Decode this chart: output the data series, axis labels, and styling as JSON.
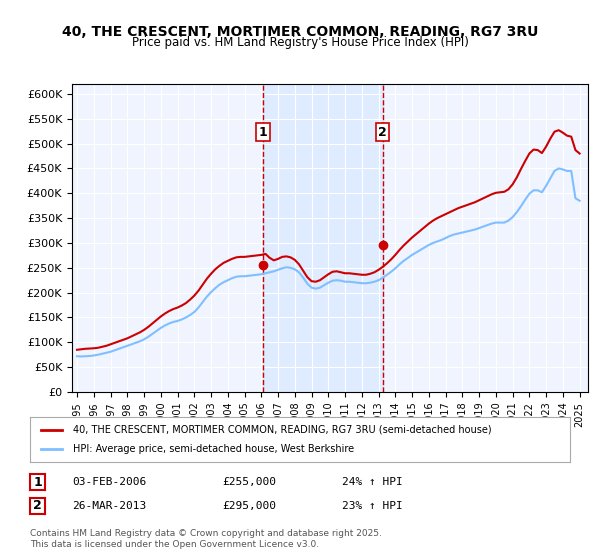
{
  "title": "40, THE CRESCENT, MORTIMER COMMON, READING, RG7 3RU",
  "subtitle": "Price paid vs. HM Land Registry's House Price Index (HPI)",
  "ylabel_ticks": [
    "£0",
    "£50K",
    "£100K",
    "£150K",
    "£200K",
    "£250K",
    "£300K",
    "£350K",
    "£400K",
    "£450K",
    "£500K",
    "£550K",
    "£600K"
  ],
  "ylim": [
    0,
    600000
  ],
  "xlim_start": 1995.0,
  "xlim_end": 2025.5,
  "background_color": "#ffffff",
  "plot_bg_color": "#f0f4ff",
  "grid_color": "#ffffff",
  "hpi_line_color": "#7fbfff",
  "price_line_color": "#cc0000",
  "sale1_date": "03-FEB-2006",
  "sale1_price": 255000,
  "sale1_pct": "24% ↑ HPI",
  "sale2_date": "26-MAR-2013",
  "sale2_price": 295000,
  "sale2_pct": "23% ↑ HPI",
  "legend_label1": "40, THE CRESCENT, MORTIMER COMMON, READING, RG7 3RU (semi-detached house)",
  "legend_label2": "HPI: Average price, semi-detached house, West Berkshire",
  "footer": "Contains HM Land Registry data © Crown copyright and database right 2025.\nThis data is licensed under the Open Government Licence v3.0.",
  "marker1_x": 2006.09,
  "marker1_y": 255000,
  "marker2_x": 2013.24,
  "marker2_y": 295000,
  "vline1_x": 2006.09,
  "vline2_x": 2013.24,
  "hpi_data_x": [
    1995.0,
    1995.25,
    1995.5,
    1995.75,
    1996.0,
    1996.25,
    1996.5,
    1996.75,
    1997.0,
    1997.25,
    1997.5,
    1997.75,
    1998.0,
    1998.25,
    1998.5,
    1998.75,
    1999.0,
    1999.25,
    1999.5,
    1999.75,
    2000.0,
    2000.25,
    2000.5,
    2000.75,
    2001.0,
    2001.25,
    2001.5,
    2001.75,
    2002.0,
    2002.25,
    2002.5,
    2002.75,
    2003.0,
    2003.25,
    2003.5,
    2003.75,
    2004.0,
    2004.25,
    2004.5,
    2004.75,
    2005.0,
    2005.25,
    2005.5,
    2005.75,
    2006.0,
    2006.25,
    2006.5,
    2006.75,
    2007.0,
    2007.25,
    2007.5,
    2007.75,
    2008.0,
    2008.25,
    2008.5,
    2008.75,
    2009.0,
    2009.25,
    2009.5,
    2009.75,
    2010.0,
    2010.25,
    2010.5,
    2010.75,
    2011.0,
    2011.25,
    2011.5,
    2011.75,
    2012.0,
    2012.25,
    2012.5,
    2012.75,
    2013.0,
    2013.25,
    2013.5,
    2013.75,
    2014.0,
    2014.25,
    2014.5,
    2014.75,
    2015.0,
    2015.25,
    2015.5,
    2015.75,
    2016.0,
    2016.25,
    2016.5,
    2016.75,
    2017.0,
    2017.25,
    2017.5,
    2017.75,
    2018.0,
    2018.25,
    2018.5,
    2018.75,
    2019.0,
    2019.25,
    2019.5,
    2019.75,
    2020.0,
    2020.25,
    2020.5,
    2020.75,
    2021.0,
    2021.25,
    2021.5,
    2021.75,
    2022.0,
    2022.25,
    2022.5,
    2022.75,
    2023.0,
    2023.25,
    2023.5,
    2023.75,
    2024.0,
    2024.25,
    2024.5,
    2024.75,
    2025.0
  ],
  "hpi_data_y": [
    72000,
    71500,
    72000,
    72500,
    73500,
    75000,
    77000,
    79000,
    81000,
    84000,
    87000,
    90000,
    93000,
    96000,
    99000,
    102000,
    106000,
    111000,
    117000,
    123000,
    129000,
    134000,
    138000,
    141000,
    143000,
    146000,
    150000,
    155000,
    161000,
    170000,
    181000,
    192000,
    201000,
    209000,
    216000,
    221000,
    225000,
    229000,
    232000,
    233000,
    233000,
    234000,
    235000,
    236000,
    237000,
    239000,
    241000,
    243000,
    246000,
    249000,
    251000,
    250000,
    247000,
    241000,
    230000,
    218000,
    210000,
    208000,
    210000,
    215000,
    220000,
    224000,
    225000,
    224000,
    222000,
    222000,
    221000,
    220000,
    219000,
    219000,
    220000,
    222000,
    225000,
    230000,
    236000,
    242000,
    249000,
    257000,
    264000,
    270000,
    276000,
    281000,
    286000,
    291000,
    296000,
    300000,
    303000,
    306000,
    310000,
    314000,
    317000,
    319000,
    321000,
    323000,
    325000,
    327000,
    330000,
    333000,
    336000,
    339000,
    341000,
    341000,
    341000,
    345000,
    352000,
    362000,
    374000,
    387000,
    399000,
    406000,
    406000,
    402000,
    415000,
    430000,
    445000,
    450000,
    448000,
    445000,
    445000,
    390000,
    385000
  ],
  "price_data_x": [
    1995.0,
    1995.25,
    1995.5,
    1995.75,
    1996.0,
    1996.25,
    1996.5,
    1996.75,
    1997.0,
    1997.25,
    1997.5,
    1997.75,
    1998.0,
    1998.25,
    1998.5,
    1998.75,
    1999.0,
    1999.25,
    1999.5,
    1999.75,
    2000.0,
    2000.25,
    2000.5,
    2000.75,
    2001.0,
    2001.25,
    2001.5,
    2001.75,
    2002.0,
    2002.25,
    2002.5,
    2002.75,
    2003.0,
    2003.25,
    2003.5,
    2003.75,
    2004.0,
    2004.25,
    2004.5,
    2004.75,
    2005.0,
    2005.25,
    2005.5,
    2005.75,
    2006.0,
    2006.25,
    2006.5,
    2006.75,
    2007.0,
    2007.25,
    2007.5,
    2007.75,
    2008.0,
    2008.25,
    2008.5,
    2008.75,
    2009.0,
    2009.25,
    2009.5,
    2009.75,
    2010.0,
    2010.25,
    2010.5,
    2010.75,
    2011.0,
    2011.25,
    2011.5,
    2011.75,
    2012.0,
    2012.25,
    2012.5,
    2012.75,
    2013.0,
    2013.25,
    2013.5,
    2013.75,
    2014.0,
    2014.25,
    2014.5,
    2014.75,
    2015.0,
    2015.25,
    2015.5,
    2015.75,
    2016.0,
    2016.25,
    2016.5,
    2016.75,
    2017.0,
    2017.25,
    2017.5,
    2017.75,
    2018.0,
    2018.25,
    2018.5,
    2018.75,
    2019.0,
    2019.25,
    2019.5,
    2019.75,
    2020.0,
    2020.25,
    2020.5,
    2020.75,
    2021.0,
    2021.25,
    2021.5,
    2021.75,
    2022.0,
    2022.25,
    2022.5,
    2022.75,
    2023.0,
    2023.25,
    2023.5,
    2023.75,
    2024.0,
    2024.25,
    2024.5,
    2024.75,
    2025.0
  ],
  "price_data_y": [
    85000,
    86000,
    87000,
    87500,
    88000,
    89000,
    91000,
    93000,
    96000,
    99000,
    102000,
    105000,
    108000,
    112000,
    116000,
    120000,
    125000,
    131000,
    138000,
    145000,
    152000,
    158000,
    163000,
    167000,
    170000,
    174000,
    179000,
    186000,
    194000,
    204000,
    216000,
    228000,
    238000,
    247000,
    254000,
    260000,
    264000,
    268000,
    271000,
    272000,
    272000,
    273000,
    274000,
    275000,
    276000,
    278000,
    270000,
    265000,
    268000,
    272000,
    273000,
    271000,
    266000,
    257000,
    244000,
    231000,
    223000,
    222000,
    225000,
    231000,
    237000,
    242000,
    243000,
    241000,
    239000,
    239000,
    238000,
    237000,
    236000,
    236000,
    238000,
    241000,
    246000,
    252000,
    259000,
    267000,
    276000,
    286000,
    295000,
    303000,
    311000,
    318000,
    325000,
    332000,
    339000,
    345000,
    350000,
    354000,
    358000,
    362000,
    366000,
    370000,
    373000,
    376000,
    379000,
    382000,
    386000,
    390000,
    394000,
    398000,
    401000,
    402000,
    403000,
    408000,
    418000,
    432000,
    449000,
    465000,
    480000,
    488000,
    487000,
    481000,
    494000,
    510000,
    524000,
    527000,
    522000,
    516000,
    514000,
    487000,
    480000
  ]
}
